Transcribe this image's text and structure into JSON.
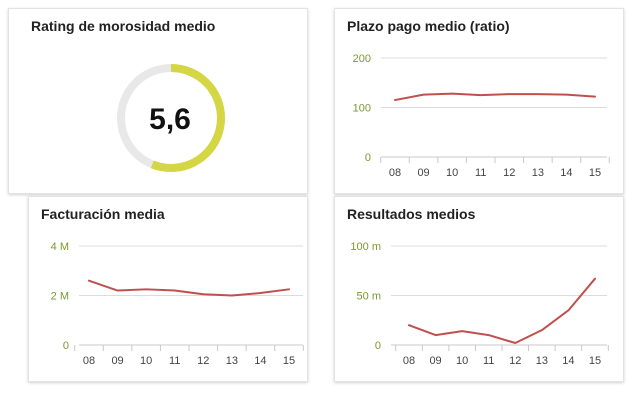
{
  "colors": {
    "accent_line": "#c0504d",
    "gauge_fill": "#d4d643",
    "gauge_track": "#e8e8e8",
    "axis_label": "#7a9a2e",
    "grid": "#dcdcdc"
  },
  "gauge": {
    "title": "Rating de morosidad medio",
    "value_label": "5,6",
    "fill_fraction": 0.56
  },
  "chart_data": [
    {
      "type": "line",
      "title": "Plazo pago medio (ratio)",
      "categories": [
        "08",
        "09",
        "10",
        "11",
        "12",
        "13",
        "14",
        "15"
      ],
      "values": [
        115,
        126,
        128,
        125,
        127,
        127,
        126,
        122
      ],
      "ylim": [
        0,
        200
      ],
      "y_ticks": [
        0,
        100,
        200
      ],
      "y_tick_labels": [
        "0",
        "100",
        "200"
      ],
      "grid": true
    },
    {
      "type": "line",
      "title": "Facturación media",
      "categories": [
        "08",
        "09",
        "10",
        "11",
        "12",
        "13",
        "14",
        "15"
      ],
      "values": [
        2.6,
        2.2,
        2.25,
        2.2,
        2.05,
        2.0,
        2.1,
        2.25
      ],
      "ylim": [
        0,
        4
      ],
      "y_ticks": [
        0,
        2,
        4
      ],
      "y_tick_labels": [
        "0",
        "2 M",
        "4 M"
      ],
      "grid": true
    },
    {
      "type": "line",
      "title": "Resultados medios",
      "categories": [
        "08",
        "09",
        "10",
        "11",
        "12",
        "13",
        "14",
        "15"
      ],
      "values": [
        20,
        10,
        14,
        10,
        2,
        15,
        35,
        67
      ],
      "ylim": [
        0,
        100
      ],
      "y_ticks": [
        0,
        50,
        100
      ],
      "y_tick_labels": [
        "0",
        "50 m",
        "100 m"
      ],
      "grid": true
    }
  ]
}
